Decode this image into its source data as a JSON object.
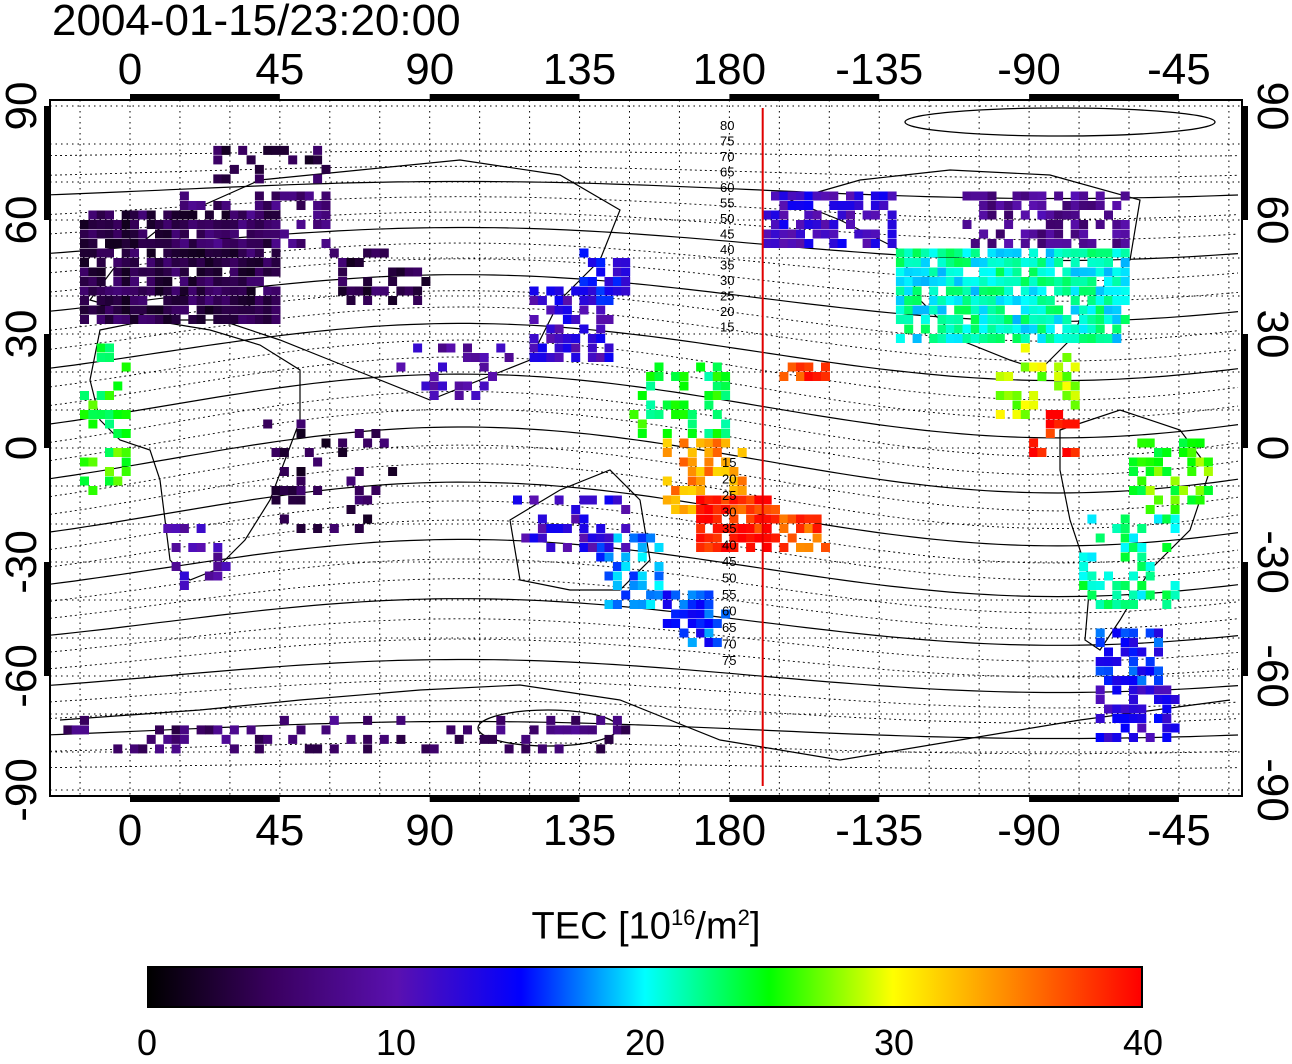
{
  "title": "2004-01-15/23:20:00",
  "map": {
    "x_ticks": [
      "0",
      "45",
      "90",
      "135",
      "180",
      "-135",
      "-90",
      "-45"
    ],
    "y_ticks": [
      "90",
      "60",
      "30",
      "0",
      "-30",
      "-60",
      "-90"
    ],
    "contour_labels_north": [
      "80",
      "75",
      "70",
      "65",
      "60",
      "55",
      "50",
      "45",
      "40",
      "35",
      "30",
      "25",
      "20",
      "15"
    ],
    "contour_labels_south": [
      "15",
      "20",
      "25",
      "30",
      "35",
      "40",
      "45",
      "50",
      "55",
      "60",
      "65",
      "70",
      "75"
    ],
    "marker_longitude": -170,
    "marker_color": "#e00000"
  },
  "colorbar": {
    "title_prefix": "TEC  [10",
    "title_exp": "16",
    "title_mid": "/m",
    "title_exp2": "2",
    "title_suffix": "]",
    "ticks": [
      "0",
      "10",
      "20",
      "30",
      "40"
    ],
    "min": 0,
    "max": 40,
    "colors": [
      "#000000",
      "#3a0060",
      "#5a10b0",
      "#0000ff",
      "#00ffff",
      "#00ff00",
      "#ffff00",
      "#ff8000",
      "#ff0000"
    ]
  }
}
